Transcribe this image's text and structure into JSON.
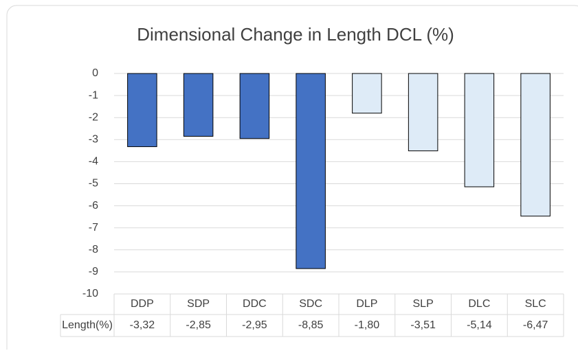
{
  "chart_data": {
    "type": "bar",
    "title": "Dimensional Change in Length DCL (%)",
    "categories": [
      "DDP",
      "SDP",
      "DDC",
      "SDC",
      "DLP",
      "SLP",
      "DLC",
      "SLC"
    ],
    "series": [
      {
        "name": "Length(%)",
        "colors": [
          "#4472c4",
          "#4472c4",
          "#4472c4",
          "#4472c4",
          "#deebf7",
          "#deebf7",
          "#deebf7",
          "#deebf7"
        ],
        "values": [
          -3.32,
          -2.85,
          -2.95,
          -8.85,
          -1.8,
          -3.51,
          -5.14,
          -6.47
        ],
        "value_labels": [
          "-3,32",
          "-2,85",
          "-2,95",
          "-8,85",
          "-1,80",
          "-3,51",
          "-5,14",
          "-6,47"
        ]
      }
    ],
    "ylim": [
      -10,
      0
    ],
    "yticks": [
      0,
      -1,
      -2,
      -3,
      -4,
      -5,
      -6,
      -7,
      -8,
      -9,
      -10
    ],
    "grid": true
  }
}
